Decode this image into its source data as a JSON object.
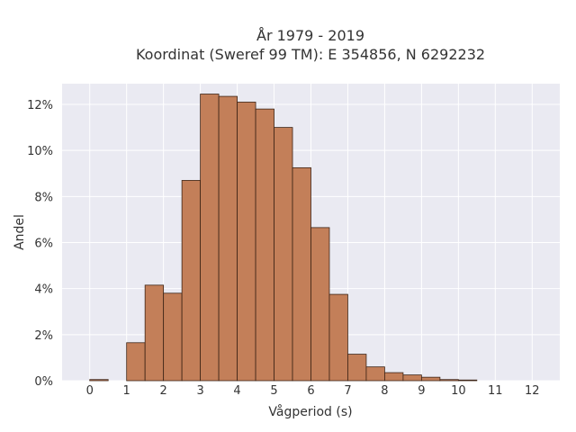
{
  "chart_data": {
    "type": "bar",
    "title_line1": "År 1979 - 2019",
    "title_line2": "Koordinat (Sweref 99 TM): E 354856, N 6292232",
    "xlabel": "Vågperiod (s)",
    "ylabel": "Andel",
    "xlim": [
      -0.75,
      12.75
    ],
    "ylim": [
      0,
      12.9
    ],
    "x_ticks": [
      "0",
      "1",
      "2",
      "3",
      "4",
      "5",
      "6",
      "7",
      "8",
      "9",
      "10",
      "11",
      "12"
    ],
    "y_ticks": [
      "0%",
      "2%",
      "4%",
      "6%",
      "8%",
      "10%",
      "12%"
    ],
    "bin_width": 0.5,
    "bin_starts": [
      0,
      1,
      1.5,
      2,
      2.5,
      3,
      3.5,
      4,
      4.5,
      5,
      5.5,
      6,
      6.5,
      7,
      7.5,
      8,
      8.5,
      9,
      9.5,
      10
    ],
    "values": [
      0.05,
      1.65,
      4.15,
      3.8,
      8.7,
      12.45,
      12.35,
      12.1,
      11.8,
      11.0,
      9.25,
      6.65,
      3.75,
      1.15,
      0.6,
      0.35,
      0.25,
      0.15,
      0.05,
      0.03
    ],
    "grid": true,
    "colors": {
      "bar_fill": "#c17a52",
      "bar_edge": "#3d2416",
      "plot_background": "#eaeaf2",
      "grid": "#ffffff"
    }
  }
}
